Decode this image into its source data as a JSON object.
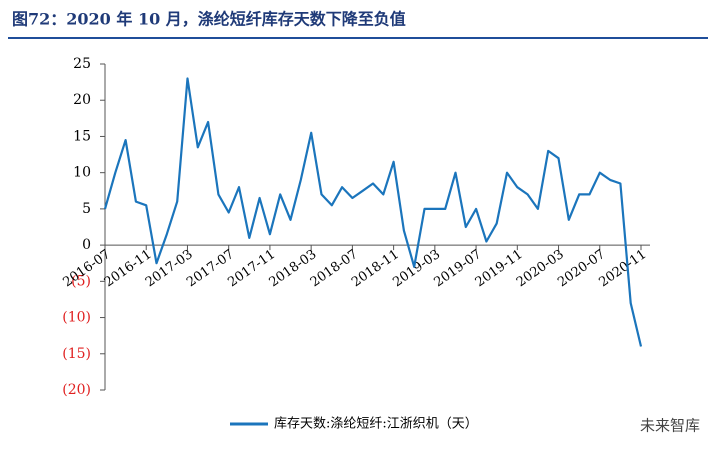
{
  "chart_data": {
    "type": "line",
    "title": "图72：2020 年 10 月，涤纶短纤库存天数下降至负值",
    "categories": [
      "2016-07",
      null,
      null,
      null,
      "2016-11",
      null,
      null,
      null,
      "2017-03",
      null,
      null,
      null,
      "2017-07",
      null,
      null,
      null,
      "2017-11",
      null,
      null,
      null,
      "2018-03",
      null,
      null,
      null,
      "2018-07",
      null,
      null,
      null,
      "2018-11",
      null,
      null,
      null,
      "2019-03",
      null,
      null,
      null,
      "2019-07",
      null,
      null,
      null,
      "2019-11",
      null,
      null,
      null,
      "2020-03",
      null,
      null,
      null,
      "2020-07",
      null,
      null,
      null,
      "2020-11"
    ],
    "series": [
      {
        "name": "库存天数:涤纶短纤:江浙织机（天）",
        "color": "#1b75bc",
        "values": [
          5,
          10,
          14.5,
          6,
          5.5,
          -2.5,
          1.5,
          6,
          23,
          13.5,
          17,
          7,
          4.5,
          8,
          1,
          6.5,
          1.5,
          7,
          3.5,
          9,
          15.5,
          7,
          5.5,
          8,
          6.5,
          7.5,
          8.5,
          7,
          11.5,
          2,
          -3,
          5,
          5,
          5,
          10,
          2.5,
          5,
          0.5,
          3,
          10,
          8,
          7,
          5,
          13,
          12,
          3.5,
          7,
          7,
          10,
          9,
          8.5,
          -8,
          -14
        ]
      }
    ],
    "ylim": [
      -20,
      25
    ],
    "yticks": [
      25,
      20,
      15,
      10,
      5,
      0,
      {
        "value": -5,
        "label": "(5)"
      },
      {
        "value": -10,
        "label": "(10)"
      },
      {
        "value": -15,
        "label": "(15)"
      },
      {
        "value": -20,
        "label": "(20)"
      }
    ],
    "negative_tick_color": "#e02020",
    "watermark": "未来智库"
  }
}
